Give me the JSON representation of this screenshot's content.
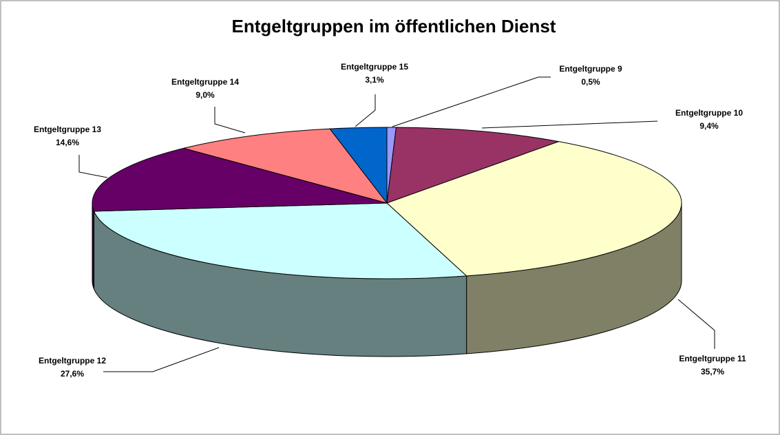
{
  "chart_data": {
    "type": "pie3d",
    "title": "Entgeltgruppen im öffentlichen Dienst",
    "categories": [
      "Entgeltgruppe 9",
      "Entgeltgruppe 10",
      "Entgeltgruppe 11",
      "Entgeltgruppe 12",
      "Entgeltgruppe 13",
      "Entgeltgruppe 14",
      "Entgeltgruppe 15"
    ],
    "values": [
      0.5,
      9.4,
      35.7,
      27.6,
      14.6,
      9.0,
      3.1
    ],
    "value_labels": [
      "0,5%",
      "9,4%",
      "35,7%",
      "27,6%",
      "14,6%",
      "9,0%",
      "3,1%"
    ],
    "colors": [
      "#9999ff",
      "#993366",
      "#ffffcc",
      "#ccffff",
      "#660066",
      "#ff8080",
      "#0066cc"
    ]
  }
}
